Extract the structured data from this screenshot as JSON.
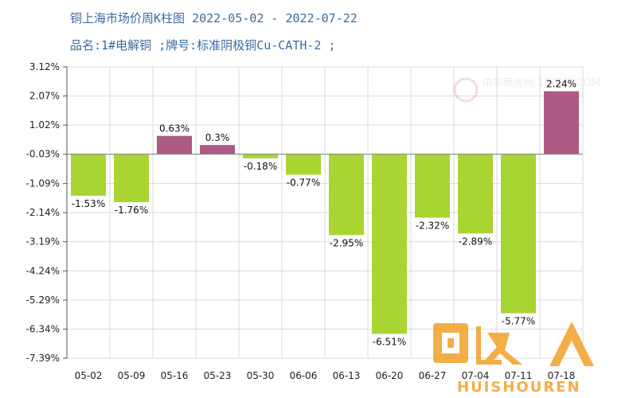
{
  "chart_data": {
    "type": "bar",
    "title": "铜上海市场价周K柱图",
    "date_range": "2022-05-02 - 2022-07-22",
    "subtitle": "品名:1#电解铜 ;牌号:标准阴极铜Cu-CATH-2 ;",
    "categories": [
      "05-02",
      "05-09",
      "05-16",
      "05-23",
      "05-30",
      "06-06",
      "06-13",
      "06-20",
      "06-27",
      "07-04",
      "07-11",
      "07-18"
    ],
    "values": [
      -1.53,
      -1.76,
      0.63,
      0.3,
      -0.18,
      -0.77,
      -2.95,
      -6.51,
      -2.32,
      -2.89,
      -5.77,
      2.24
    ],
    "value_labels": [
      "-1.53%",
      "-1.76%",
      "0.63%",
      "0.3%",
      "-0.18%",
      "-0.77%",
      "-2.95%",
      "-6.51%",
      "-2.32%",
      "-2.89%",
      "-5.77%",
      "2.24%"
    ],
    "y_ticks": [
      "3.12%",
      "2.07%",
      "1.02%",
      "-0.03%",
      "-1.09%",
      "-2.14%",
      "-3.19%",
      "-4.24%",
      "-5.29%",
      "-6.34%",
      "-7.39%"
    ],
    "y_tick_values": [
      3.12,
      2.07,
      1.02,
      -0.03,
      -1.09,
      -2.14,
      -3.19,
      -4.24,
      -5.29,
      -6.34,
      -7.39
    ],
    "ylim": [
      -7.39,
      3.12
    ],
    "baseline": -0.03,
    "grid": true,
    "legend": "none",
    "colors": {
      "up": "#ad5a85",
      "down": "#a9d533",
      "grid": "#d9d9d9",
      "axis": "#555555",
      "title": "#3b6aa3"
    }
  },
  "watermarks": {
    "center_text": "中华商务网 100PPI.COM",
    "brand_text": "HUISHOUREN"
  }
}
